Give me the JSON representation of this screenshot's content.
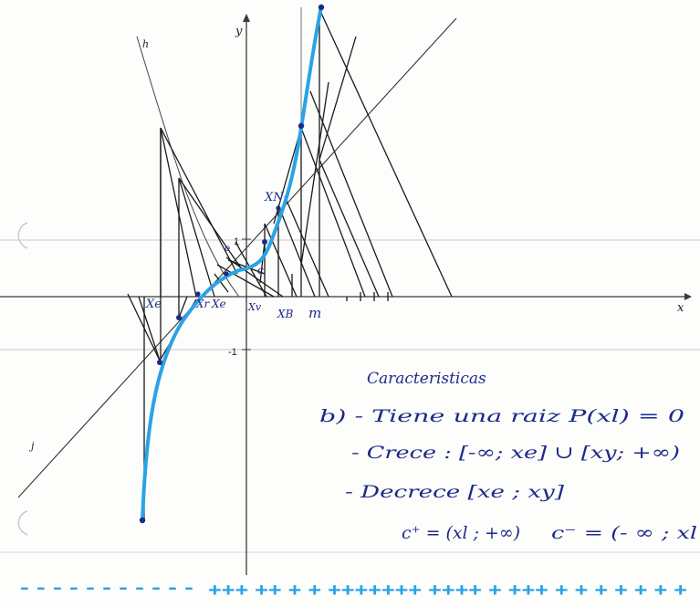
{
  "colors": {
    "paper": "#fdfdfb",
    "ruled_line": "#d9d9d9",
    "axis": "#3a3a3a",
    "construction": "#1a1a1a",
    "curve": "#2aa3e6",
    "ink": "#1d2a8a",
    "sign_line": "#2aa3e6"
  },
  "axes": {
    "x_label": "x",
    "y_label": "y",
    "tick_1": "1",
    "tick_minus1": "-1"
  },
  "graph_labels": {
    "h": "h",
    "j": "j"
  },
  "point_labels": {
    "xe_left": "Xe",
    "xr": "Xr",
    "xe": "Xe",
    "xv": "Xv",
    "xb": "XB",
    "m": "m",
    "xn": "XN",
    "o": "o",
    "c": "c"
  },
  "notes": {
    "heading": "Caracteristicas",
    "item_b": "b) - Tiene una raiz P(xl) = 0",
    "line2": "- Crece : [-∞; xe] ∪ [xy; +∞)",
    "line3": "- Decrece [xe ; xy]",
    "line4_left": "c⁺ = (xl ; +∞)",
    "line4_right": "c⁻ = (- ∞ ; xl"
  },
  "sign_chart": {
    "minus": "- - - - - - - - - - -",
    "plus": "+++ ++ + + +++++++ ++++ + +++ + + + + + + +"
  }
}
